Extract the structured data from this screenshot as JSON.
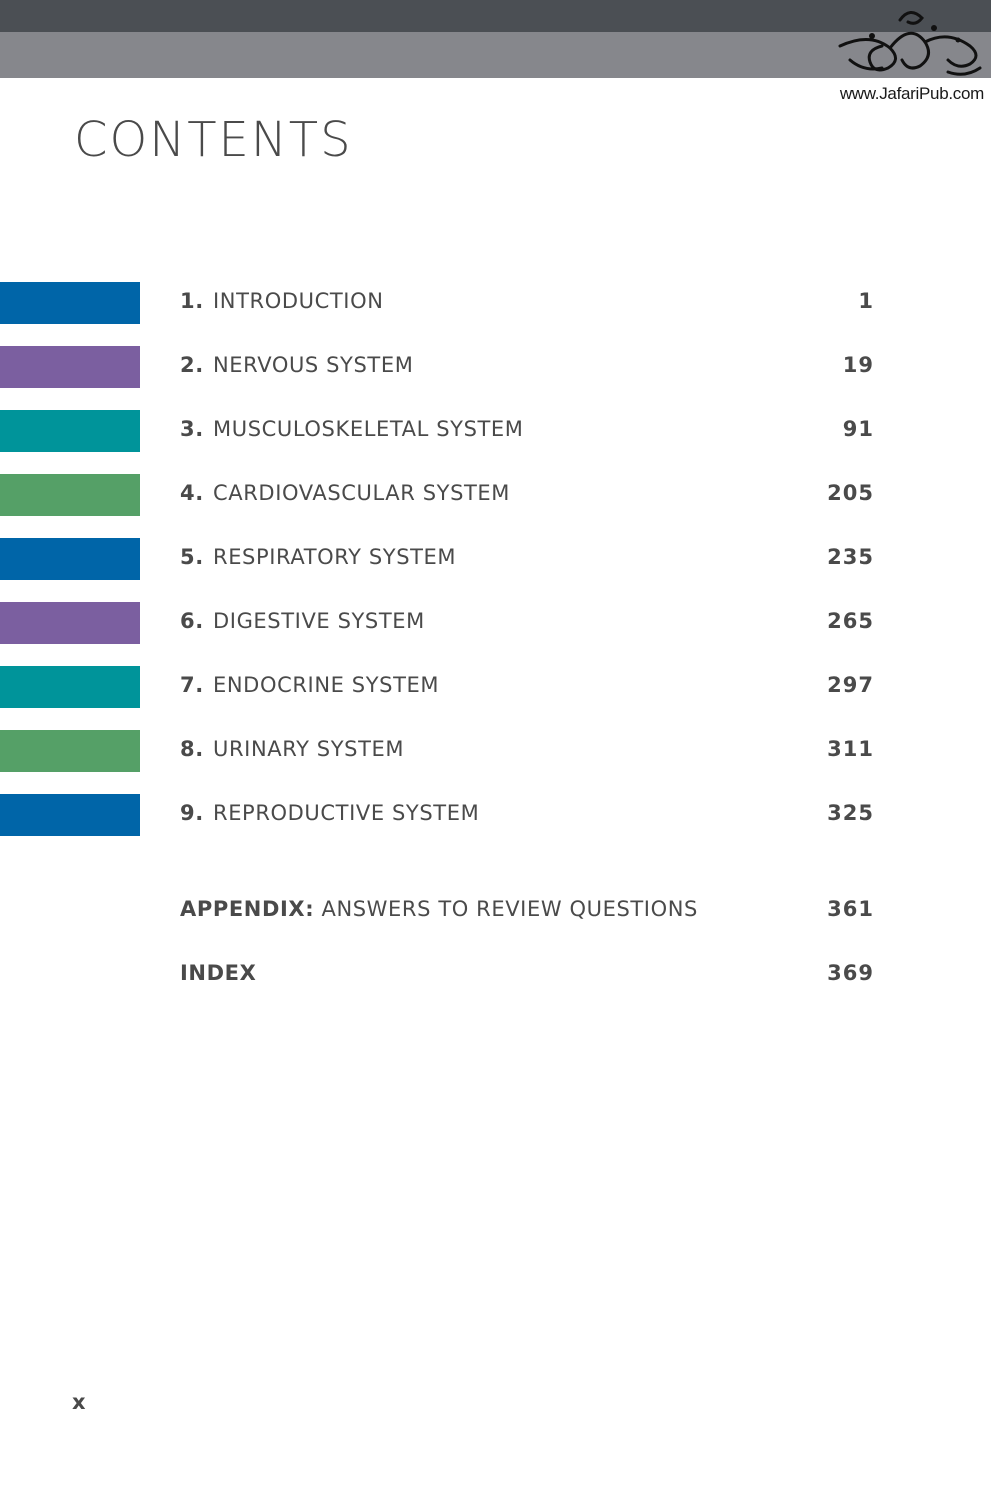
{
  "header": {
    "logo_url": "www.JafariPub.com"
  },
  "title": "CONTENTS",
  "colors": {
    "band_dark": "#4b4f54",
    "band_light": "#86878c",
    "blue": "#0065a8",
    "purple": "#7b5fa0",
    "teal": "#00949a",
    "green": "#55a067",
    "text": "#4a4a4a"
  },
  "chapters": [
    {
      "num": "1.",
      "title": "INTRODUCTION",
      "page": "1",
      "color": "#0065a8"
    },
    {
      "num": "2.",
      "title": "NERVOUS SYSTEM",
      "page": "19",
      "color": "#7b5fa0"
    },
    {
      "num": "3.",
      "title": "MUSCULOSKELETAL SYSTEM",
      "page": "91",
      "color": "#00949a"
    },
    {
      "num": "4.",
      "title": "CARDIOVASCULAR SYSTEM",
      "page": "205",
      "color": "#55a067"
    },
    {
      "num": "5.",
      "title": "RESPIRATORY SYSTEM",
      "page": "235",
      "color": "#0065a8"
    },
    {
      "num": "6.",
      "title": "DIGESTIVE SYSTEM",
      "page": "265",
      "color": "#7b5fa0"
    },
    {
      "num": "7.",
      "title": "ENDOCRINE SYSTEM",
      "page": "297",
      "color": "#00949a"
    },
    {
      "num": "8.",
      "title": "URINARY SYSTEM",
      "page": "311",
      "color": "#55a067"
    },
    {
      "num": "9.",
      "title": "REPRODUCTIVE SYSTEM",
      "page": "325",
      "color": "#0065a8"
    }
  ],
  "appendix": {
    "label_bold": "APPENDIX:",
    "label_rest": " ANSWERS TO REVIEW QUESTIONS",
    "page": "361"
  },
  "index": {
    "label": "INDEX",
    "page": "369"
  },
  "folio": "x"
}
